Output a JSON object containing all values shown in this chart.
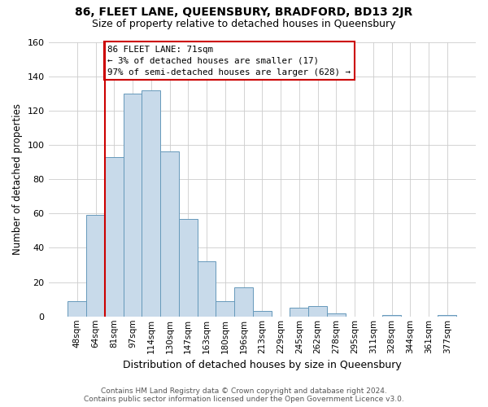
{
  "title": "86, FLEET LANE, QUEENSBURY, BRADFORD, BD13 2JR",
  "subtitle": "Size of property relative to detached houses in Queensbury",
  "xlabel": "Distribution of detached houses by size in Queensbury",
  "ylabel": "Number of detached properties",
  "footer_line1": "Contains HM Land Registry data © Crown copyright and database right 2024.",
  "footer_line2": "Contains public sector information licensed under the Open Government Licence v3.0.",
  "categories": [
    "48sqm",
    "64sqm",
    "81sqm",
    "97sqm",
    "114sqm",
    "130sqm",
    "147sqm",
    "163sqm",
    "180sqm",
    "196sqm",
    "213sqm",
    "229sqm",
    "245sqm",
    "262sqm",
    "278sqm",
    "295sqm",
    "311sqm",
    "328sqm",
    "344sqm",
    "361sqm",
    "377sqm"
  ],
  "values": [
    9,
    59,
    93,
    130,
    132,
    96,
    57,
    32,
    9,
    17,
    3,
    0,
    5,
    6,
    2,
    0,
    0,
    1,
    0,
    0,
    1
  ],
  "bar_color": "#c8daea",
  "bar_edge_color": "#6699bb",
  "vline_x": 1.5,
  "vline_color": "#cc0000",
  "annotation_text": "86 FLEET LANE: 71sqm\n← 3% of detached houses are smaller (17)\n97% of semi-detached houses are larger (628) →",
  "annotation_box_color": "#ffffff",
  "annotation_box_edge": "#cc0000",
  "ylim": [
    0,
    160
  ],
  "yticks": [
    0,
    20,
    40,
    60,
    80,
    100,
    120,
    140,
    160
  ],
  "grid_color": "#cccccc",
  "bg_color": "#ffffff",
  "plot_bg_color": "#ffffff",
  "title_fontsize": 10,
  "subtitle_fontsize": 9
}
